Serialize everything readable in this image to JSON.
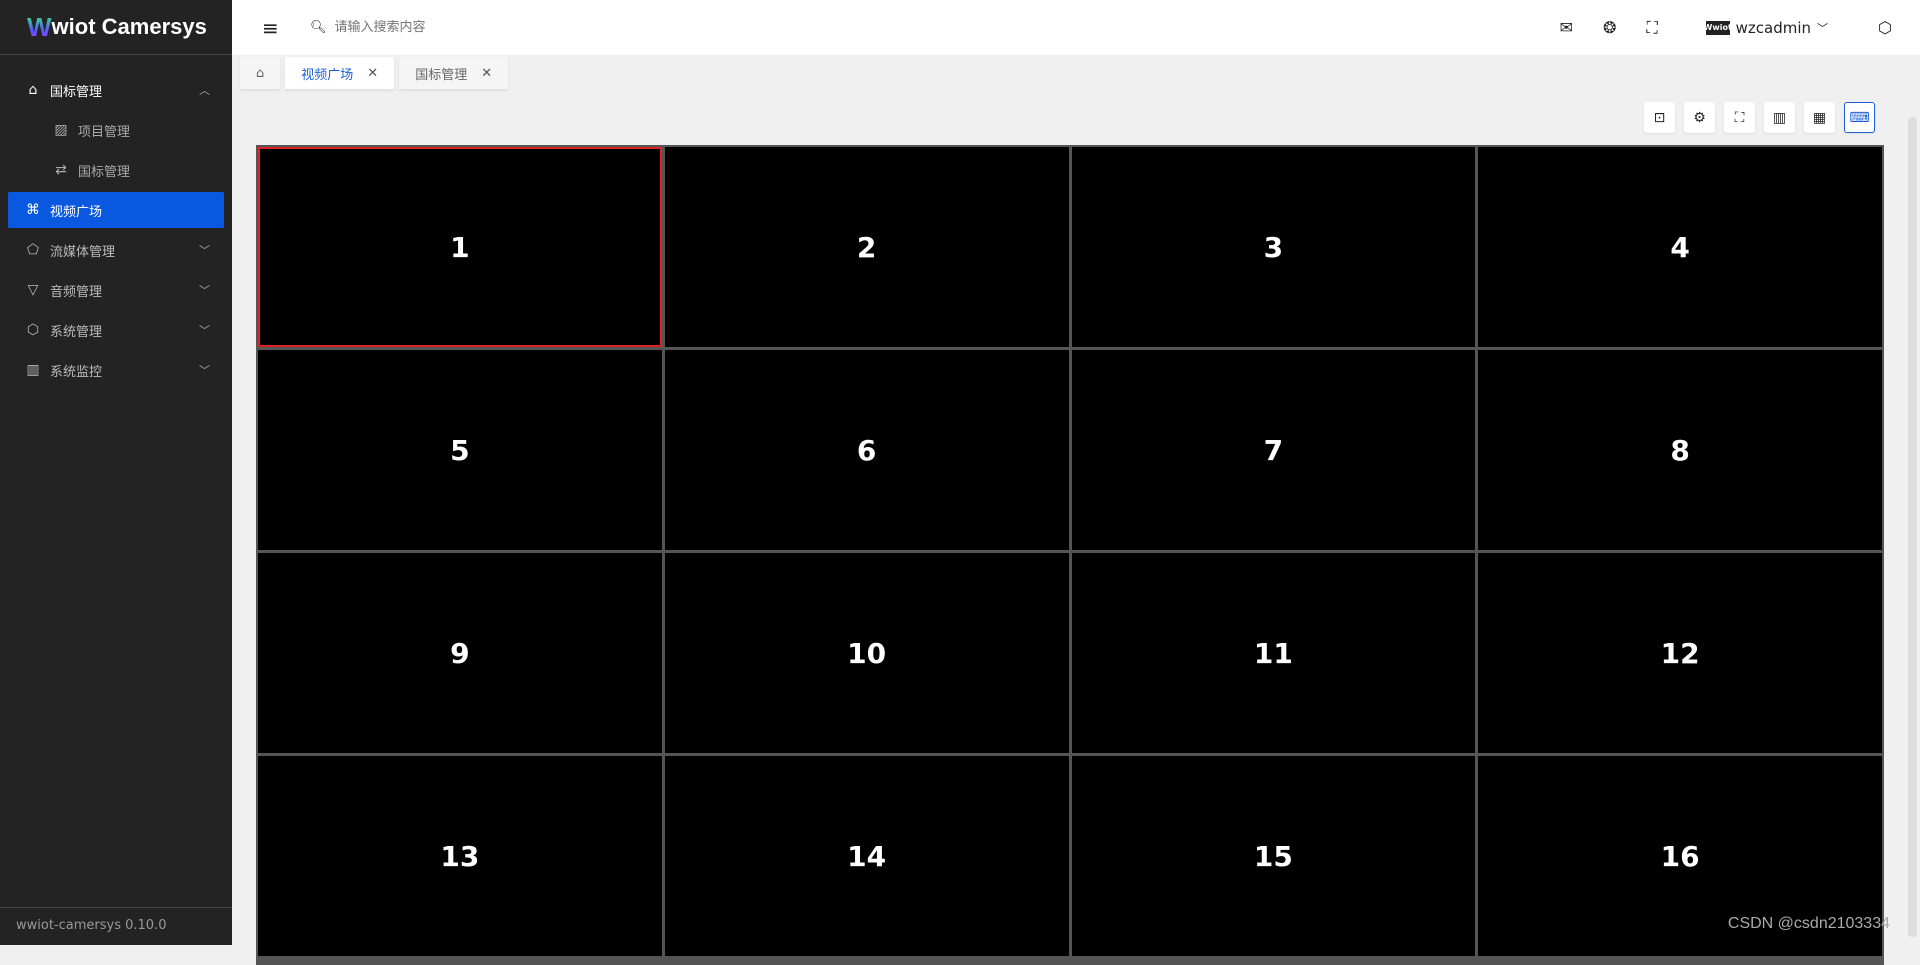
{
  "app": {
    "logo_mark": "W",
    "title": "wiot Camersys",
    "version": "wwiot-camersys 0.10.0"
  },
  "sidebar": {
    "items": [
      {
        "label": "国标管理",
        "icon": "camera-home-icon",
        "expanded": true
      },
      {
        "label": "项目管理",
        "icon": "chart-icon",
        "sub": true
      },
      {
        "label": "国标管理",
        "icon": "swap-icon",
        "sub": true
      },
      {
        "label": "视频广场",
        "icon": "command-icon",
        "active": true
      },
      {
        "label": "流媒体管理",
        "icon": "pentagon-icon"
      },
      {
        "label": "音频管理",
        "icon": "funnel-icon"
      },
      {
        "label": "系统管理",
        "icon": "hexagon-gear-icon"
      },
      {
        "label": "系统监控",
        "icon": "bar-chart-icon"
      }
    ]
  },
  "header": {
    "search_placeholder": "请输入搜索内容",
    "username": "wzcadmin",
    "avatar_text": "Wwiot"
  },
  "tabs": [
    {
      "label": "视频广场",
      "active": true
    },
    {
      "label": "国标管理"
    }
  ],
  "toolbar": [
    "screenshot-icon",
    "settings-icon",
    "fullscreen-icon",
    "columns-icon",
    "grid-icon",
    "keyboard-icon"
  ],
  "grid": {
    "cells": [
      "1",
      "2",
      "3",
      "4",
      "5",
      "6",
      "7",
      "8",
      "9",
      "10",
      "11",
      "12",
      "13",
      "14",
      "15",
      "16"
    ],
    "selected": "1",
    "selected_color": "#dd2222"
  },
  "colors": {
    "accent": "#0a58e0",
    "sidebar_bg": "#232323"
  },
  "watermark": "CSDN @csdn2103334"
}
